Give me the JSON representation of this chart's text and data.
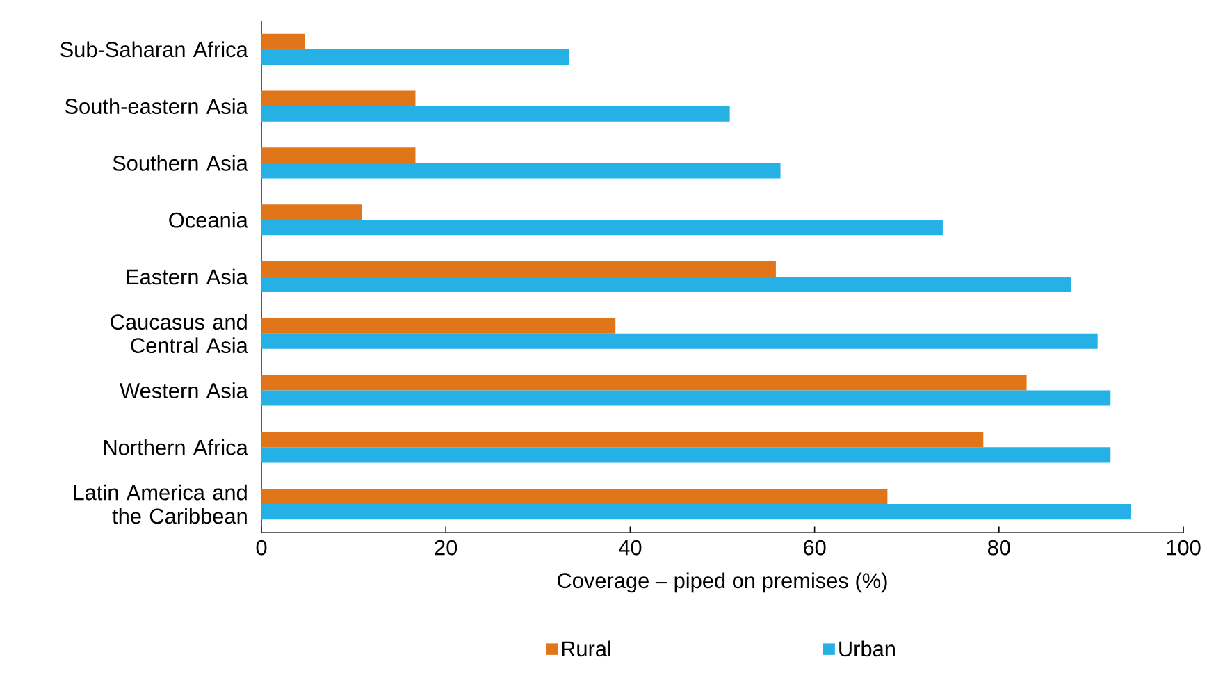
{
  "chart_data": {
    "type": "bar",
    "orientation": "horizontal",
    "xlabel": "Coverage – piped on premises (%)",
    "categories": [
      "Sub-Saharan Africa",
      "South-eastern Asia",
      "Southern Asia",
      "Oceania",
      "Eastern Asia",
      "Caucasus and Central Asia",
      "Western Asia",
      "Northern Africa",
      "Latin America and the Caribbean"
    ],
    "series": [
      {
        "name": "Rural",
        "color": "#e07519",
        "values": [
          4.7,
          16.7,
          16.7,
          10.9,
          55.8,
          38.4,
          83.0,
          78.3,
          67.9
        ]
      },
      {
        "name": "Urban",
        "color": "#25b1e6",
        "values": [
          33.4,
          50.8,
          56.3,
          73.9,
          87.8,
          90.7,
          92.1,
          92.1,
          94.3
        ]
      }
    ],
    "xlim": [
      0,
      100
    ],
    "xticks": [
      0,
      20,
      40,
      60,
      80,
      100
    ],
    "legend": "bottom"
  }
}
